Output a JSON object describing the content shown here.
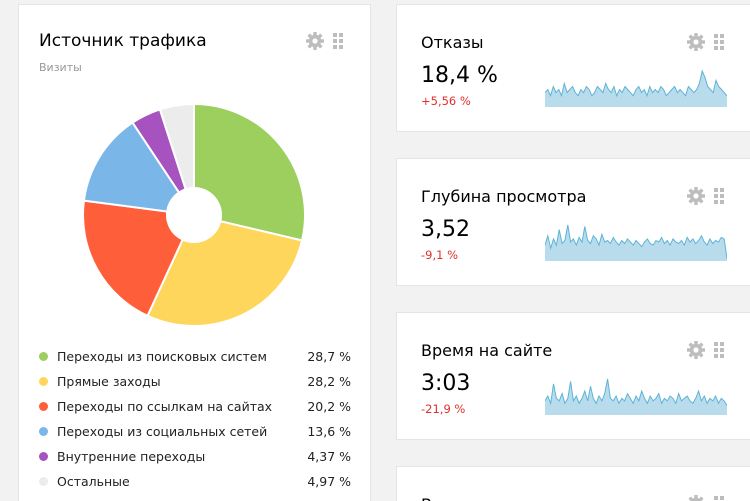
{
  "traffic_widget": {
    "title": "Источник трафика",
    "subtitle": "Визиты",
    "chart_data": {
      "type": "pie",
      "categories": [
        "Переходы из поисковых систем",
        "Прямые заходы",
        "Переходы по ссылкам на сайтах",
        "Переходы из социальных сетей",
        "Внутренние переходы",
        "Остальные"
      ],
      "values": [
        28.7,
        28.2,
        20.2,
        13.6,
        4.37,
        4.97
      ],
      "labels": [
        "28,7 %",
        "28,2 %",
        "20,2 %",
        "13,6 %",
        "4,37 %",
        "4,97 %"
      ],
      "colors": [
        "#9ccf5e",
        "#ffd65c",
        "#ff5e3a",
        "#7bb6e8",
        "#a653c0",
        "#ececec"
      ],
      "donut": true
    }
  },
  "metrics": [
    {
      "title": "Отказы",
      "value": "18,4 %",
      "change": "+5,56 %",
      "spark": [
        4,
        5,
        3,
        6,
        4,
        5,
        3,
        7,
        4,
        5,
        6,
        4,
        3,
        5,
        4,
        6,
        5,
        3,
        4,
        6,
        5,
        4,
        7,
        5,
        4,
        6,
        3,
        5,
        4,
        6,
        5,
        4,
        3,
        5,
        6,
        4,
        5,
        3,
        6,
        4,
        5,
        4,
        6,
        5,
        3,
        4,
        5,
        6,
        4,
        5,
        4,
        3,
        6,
        5,
        4,
        5,
        7,
        11,
        9,
        6,
        5,
        4,
        8,
        6,
        5,
        4,
        3
      ]
    },
    {
      "title": "Глубина просмотра",
      "value": "3,52",
      "change": "-9,1 %",
      "spark": [
        9,
        15,
        7,
        13,
        9,
        19,
        10,
        12,
        22,
        11,
        13,
        9,
        14,
        11,
        21,
        12,
        10,
        15,
        13,
        9,
        16,
        11,
        12,
        10,
        14,
        11,
        9,
        12,
        10,
        13,
        11,
        9,
        12,
        10,
        8,
        11,
        13,
        10,
        9,
        12,
        11,
        14,
        10,
        12,
        9,
        13,
        11,
        10,
        12,
        9,
        14,
        11,
        13,
        10,
        12,
        15,
        11,
        9,
        13,
        10,
        12,
        11,
        14,
        13,
        0
      ]
    },
    {
      "title": "Время на сайте",
      "value": "3:03",
      "change": "-21,9 %",
      "spark": [
        5,
        7,
        4,
        12,
        6,
        5,
        8,
        4,
        6,
        13,
        5,
        7,
        4,
        6,
        9,
        5,
        11,
        6,
        4,
        7,
        5,
        8,
        14,
        6,
        5,
        7,
        4,
        6,
        5,
        8,
        6,
        4,
        7,
        5,
        9,
        6,
        4,
        7,
        5,
        6,
        8,
        4,
        6,
        5,
        7,
        6,
        4,
        8,
        5,
        6,
        7,
        5,
        4,
        6,
        9,
        5,
        7,
        4,
        6,
        5,
        7,
        4,
        6,
        5,
        3
      ]
    },
    {
      "title": "Возраст"
    }
  ],
  "colors": {
    "spark_fill": "#b9dcec",
    "spark_stroke": "#5eb3d8",
    "change_negative": "#e0302c"
  },
  "icons": {
    "settings": "gear-icon",
    "drag": "drag-grip-icon"
  }
}
